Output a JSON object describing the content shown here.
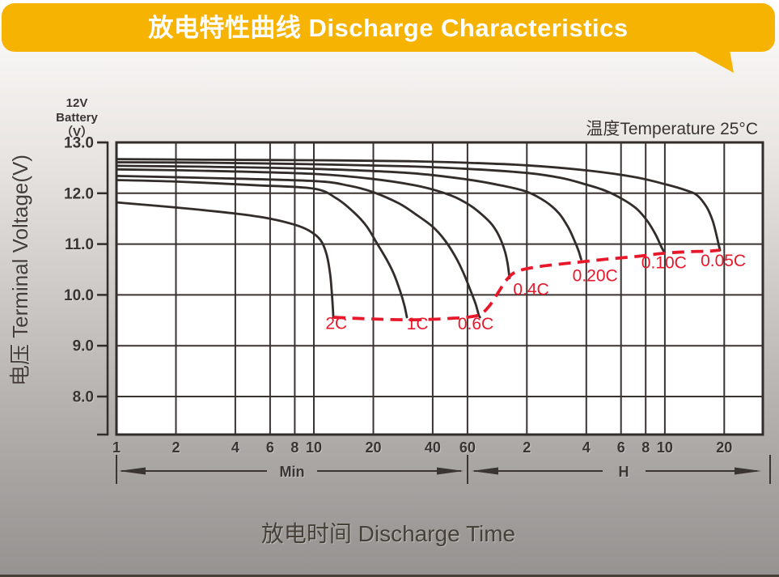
{
  "colors": {
    "banner": "#f6b301",
    "banner_text": "#ffffff",
    "curve": "#322c2a",
    "grid": "#3a3331",
    "cutoff": "#e8182b",
    "text": "#3a3432",
    "plot_bg": "#ffffff"
  },
  "chart_data": {
    "type": "line",
    "title": "放电特性曲线 Discharge Characteristics",
    "xlabel": "放电时间 Discharge Time",
    "ylabel": "电压 Terminal Voltage(V)",
    "y_unit_lines": [
      "12V",
      "Battery",
      "（V）"
    ],
    "annotation": "温度Temperature 25°C",
    "x_scale": "log",
    "grid": true,
    "ylim": [
      7.25,
      13.0
    ],
    "xlim_minutes": [
      1,
      1880
    ],
    "x_axis_unit_labels": {
      "minutes": "Min",
      "hours": "H"
    },
    "x_ticks": {
      "minutes": [
        {
          "label": "1",
          "t": 1
        },
        {
          "label": "2",
          "t": 2
        },
        {
          "label": "4",
          "t": 4
        },
        {
          "label": "6",
          "t": 6
        },
        {
          "label": "8",
          "t": 8
        },
        {
          "label": "10",
          "t": 10
        },
        {
          "label": "20",
          "t": 20
        },
        {
          "label": "40",
          "t": 40
        },
        {
          "label": "60",
          "t": 60
        }
      ],
      "hours": [
        {
          "label": "2",
          "t": 120
        },
        {
          "label": "4",
          "t": 240
        },
        {
          "label": "6",
          "t": 360
        },
        {
          "label": "8",
          "t": 480
        },
        {
          "label": "10",
          "t": 600
        },
        {
          "label": "20",
          "t": 1200
        }
      ]
    },
    "y_ticks": [
      {
        "label": "13.0",
        "v": 13.0
      },
      {
        "label": "12.0",
        "v": 12.0
      },
      {
        "label": "11.0",
        "v": 11.0
      },
      {
        "label": "10.0",
        "v": 10.0
      },
      {
        "label": "9.0",
        "v": 9.0
      },
      {
        "label": "8.0",
        "v": 8.0
      }
    ],
    "series": [
      {
        "name": "0.05C",
        "label": "0.05C",
        "label_pos": [
          1186,
          10.56
        ],
        "points": [
          [
            1,
            12.67
          ],
          [
            3,
            12.66
          ],
          [
            10,
            12.65
          ],
          [
            30,
            12.63
          ],
          [
            60,
            12.6
          ],
          [
            120,
            12.55
          ],
          [
            240,
            12.45
          ],
          [
            420,
            12.32
          ],
          [
            600,
            12.18
          ],
          [
            780,
            12.05
          ],
          [
            880,
            11.95
          ],
          [
            980,
            11.72
          ],
          [
            1050,
            11.45
          ],
          [
            1100,
            11.15
          ],
          [
            1130,
            10.95
          ],
          [
            1142,
            10.88
          ]
        ]
      },
      {
        "name": "0.10C",
        "label": "0.10C",
        "label_pos": [
          594,
          10.52
        ],
        "points": [
          [
            1,
            12.61
          ],
          [
            3,
            12.6
          ],
          [
            10,
            12.57
          ],
          [
            30,
            12.53
          ],
          [
            60,
            12.48
          ],
          [
            120,
            12.4
          ],
          [
            180,
            12.3
          ],
          [
            240,
            12.17
          ],
          [
            300,
            12.05
          ],
          [
            360,
            11.9
          ],
          [
            430,
            11.7
          ],
          [
            490,
            11.45
          ],
          [
            540,
            11.18
          ],
          [
            575,
            10.95
          ],
          [
            598,
            10.83
          ]
        ]
      },
      {
        "name": "0.20C",
        "label": "0.20C",
        "label_pos": [
          266,
          10.27
        ],
        "points": [
          [
            1,
            12.54
          ],
          [
            3,
            12.52
          ],
          [
            10,
            12.48
          ],
          [
            30,
            12.4
          ],
          [
            60,
            12.27
          ],
          [
            90,
            12.15
          ],
          [
            120,
            12.03
          ],
          [
            150,
            11.83
          ],
          [
            175,
            11.6
          ],
          [
            195,
            11.32
          ],
          [
            210,
            11.05
          ],
          [
            220,
            10.85
          ],
          [
            226,
            10.7
          ]
        ]
      },
      {
        "name": "0.4C",
        "label": "0.4C",
        "label_pos": [
          126,
          10.0
        ],
        "points": [
          [
            1,
            12.47
          ],
          [
            3,
            12.44
          ],
          [
            10,
            12.38
          ],
          [
            20,
            12.28
          ],
          [
            35,
            12.13
          ],
          [
            50,
            11.95
          ],
          [
            62,
            11.76
          ],
          [
            72,
            11.56
          ],
          [
            80,
            11.38
          ],
          [
            87,
            11.15
          ],
          [
            93,
            10.85
          ],
          [
            96,
            10.6
          ],
          [
            98,
            10.33
          ]
        ]
      },
      {
        "name": "0.6C",
        "label": "0.6C",
        "label_pos": [
          66,
          9.32
        ],
        "points": [
          [
            1,
            12.34
          ],
          [
            3,
            12.3
          ],
          [
            10,
            12.24
          ],
          [
            15,
            12.15
          ],
          [
            20,
            12.02
          ],
          [
            27,
            11.8
          ],
          [
            33,
            11.58
          ],
          [
            40,
            11.34
          ],
          [
            46,
            11.08
          ],
          [
            52,
            10.76
          ],
          [
            57,
            10.45
          ],
          [
            62,
            10.1
          ],
          [
            66,
            9.82
          ],
          [
            68.5,
            9.6
          ],
          [
            69.5,
            9.56
          ]
        ]
      },
      {
        "name": "1C",
        "label": "1C",
        "label_pos": [
          33.5,
          9.32
        ],
        "points": [
          [
            1,
            12.26
          ],
          [
            2,
            12.23
          ],
          [
            5,
            12.16
          ],
          [
            10,
            12.09
          ],
          [
            13,
            11.9
          ],
          [
            16,
            11.62
          ],
          [
            18.5,
            11.35
          ],
          [
            21,
            11.0
          ],
          [
            23.5,
            10.68
          ],
          [
            25.5,
            10.4
          ],
          [
            27.5,
            10.05
          ],
          [
            28.8,
            9.78
          ],
          [
            29.6,
            9.56
          ]
        ]
      },
      {
        "name": "2C",
        "label": "2C",
        "label_pos": [
          13,
          9.33
        ],
        "points": [
          [
            1,
            11.82
          ],
          [
            2,
            11.72
          ],
          [
            4,
            11.6
          ],
          [
            6,
            11.5
          ],
          [
            8,
            11.38
          ],
          [
            9.5,
            11.26
          ],
          [
            10.8,
            11.08
          ],
          [
            11.6,
            10.8
          ],
          [
            12.1,
            10.4
          ],
          [
            12.35,
            10.0
          ],
          [
            12.5,
            9.7
          ],
          [
            12.55,
            9.56
          ]
        ]
      }
    ],
    "cutoff_curve": {
      "name": "discharge-cutoff-voltage",
      "style": "dashed",
      "points": [
        [
          12.55,
          9.56
        ],
        [
          16,
          9.54
        ],
        [
          22,
          9.52
        ],
        [
          30,
          9.51
        ],
        [
          40,
          9.52
        ],
        [
          50,
          9.54
        ],
        [
          60,
          9.56
        ],
        [
          70,
          9.62
        ],
        [
          78,
          9.8
        ],
        [
          86,
          10.05
        ],
        [
          94,
          10.28
        ],
        [
          102,
          10.42
        ],
        [
          115,
          10.5
        ],
        [
          140,
          10.56
        ],
        [
          180,
          10.61
        ],
        [
          226,
          10.65
        ],
        [
          300,
          10.7
        ],
        [
          440,
          10.76
        ],
        [
          598,
          10.82
        ],
        [
          800,
          10.85
        ],
        [
          1000,
          10.86
        ],
        [
          1142,
          10.88
        ]
      ]
    }
  }
}
